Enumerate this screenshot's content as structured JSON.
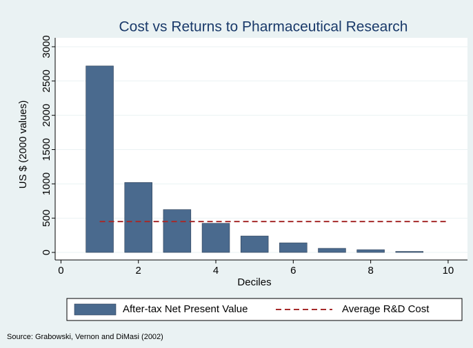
{
  "chart_data": {
    "type": "bar",
    "title": "Cost vs Returns to Pharmaceutical Research",
    "x_label": "Deciles",
    "y_label": "US $ (2000 values)",
    "source": "Source: Grabowski, Vernon and DiMasi (2002)",
    "xlim": [
      -0.15,
      10.5
    ],
    "xticks": [
      0,
      2,
      4,
      6,
      8,
      10
    ],
    "ylim": [
      -110,
      3130
    ],
    "yticks": [
      0,
      500,
      1000,
      1500,
      2000,
      2500,
      3000
    ],
    "grid": true,
    "legend": "bottom",
    "series": [
      {
        "name": "After-tax Net Present Value",
        "type": "bar",
        "color": "#4a6a8e",
        "x": [
          1,
          2,
          3,
          4,
          5,
          6,
          7,
          8,
          9
        ],
        "values": [
          2720,
          1020,
          625,
          425,
          240,
          140,
          60,
          40,
          15
        ]
      },
      {
        "name": "Average R&D Cost",
        "type": "line",
        "color": "#a52a2a",
        "dashed": true,
        "x": [
          1,
          10
        ],
        "values": [
          450,
          450
        ]
      }
    ]
  }
}
